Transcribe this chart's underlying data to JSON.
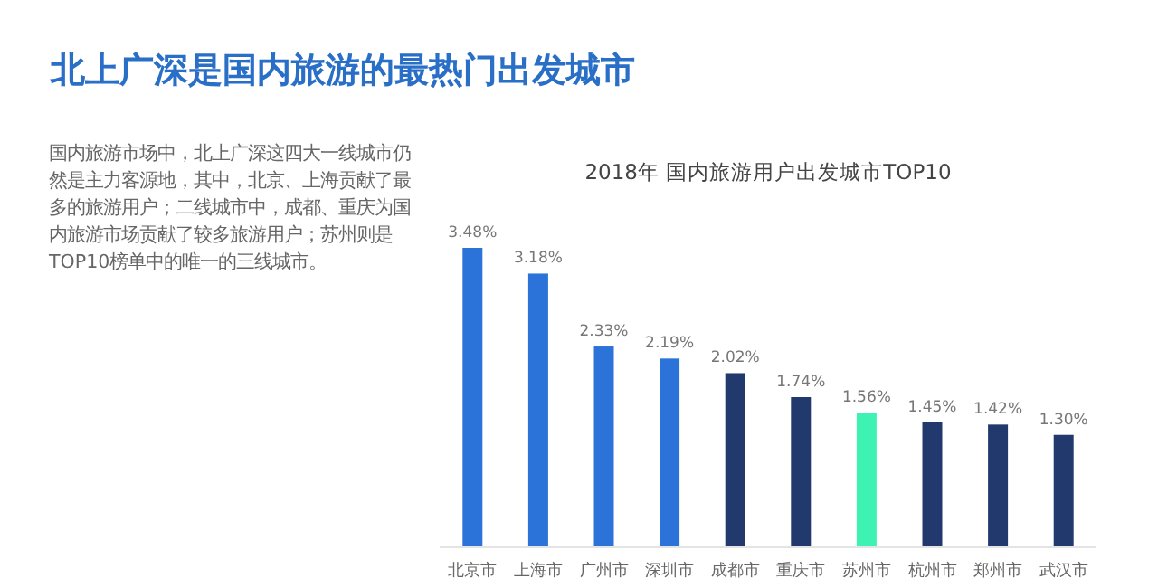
{
  "chart_data": {
    "type": "bar",
    "title": "2018年 国内旅游用户出发城市TOP10",
    "categories": [
      "北京市",
      "上海市",
      "广州市",
      "深圳市",
      "成都市",
      "重庆市",
      "苏州市",
      "杭州市",
      "郑州市",
      "武汉市"
    ],
    "values": [
      3.48,
      3.18,
      2.33,
      2.19,
      2.02,
      1.74,
      1.56,
      1.45,
      1.42,
      1.3
    ],
    "value_labels": [
      "3.48%",
      "3.18%",
      "2.33%",
      "2.19%",
      "2.02%",
      "1.74%",
      "1.56%",
      "1.45%",
      "1.42%",
      "1.30%"
    ],
    "colors": [
      "#2b72d9",
      "#2b72d9",
      "#2b72d9",
      "#2b72d9",
      "#22396e",
      "#22396e",
      "#3df2b3",
      "#22396e",
      "#22396e",
      "#22396e"
    ],
    "grid": false,
    "annotations": [
      "北上广深是国内旅游的最热门出发城市",
      "国内旅游市场中，北上广深这四大一线城市仍然是主力客源地，其中，北京、上海贡献了最多的旅游用户；二线城市中，成都、重庆为国内旅游市场贡献了较多旅游用户；苏州则是TOP10榜单中的唯一的三线城市。"
    ]
  }
}
